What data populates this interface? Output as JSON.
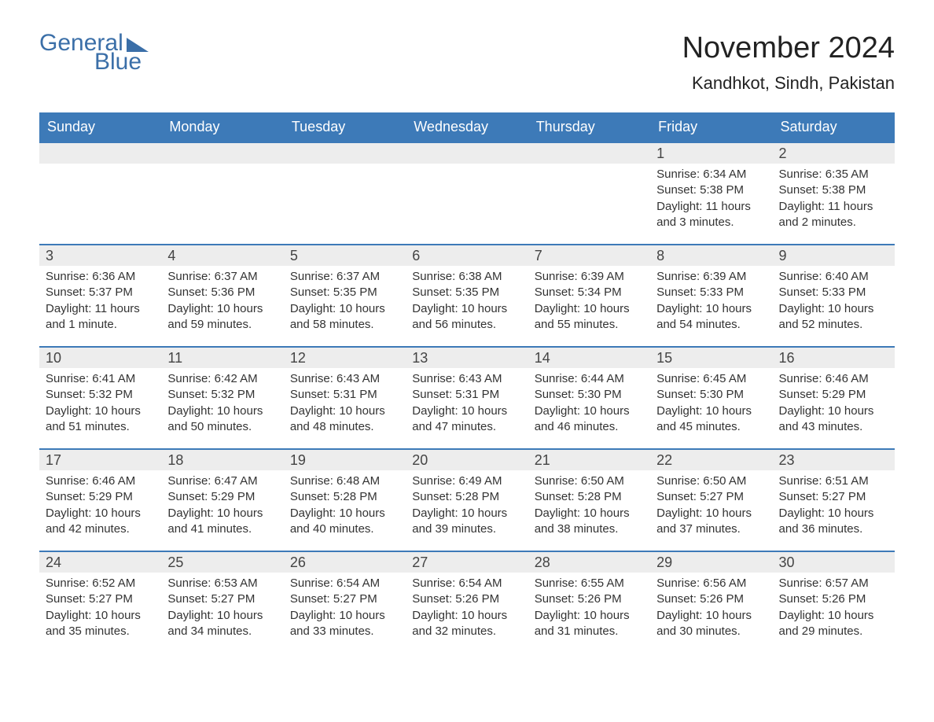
{
  "logo": {
    "word1": "General",
    "word2": "Blue"
  },
  "title": "November 2024",
  "location": "Kandhkot, Sindh, Pakistan",
  "colors": {
    "header_bg": "#3d7ab8",
    "header_text": "#ffffff",
    "daynum_bg": "#ededed",
    "week_border": "#3d7ab8",
    "body_text": "#333333",
    "logo_color": "#3b6fa8",
    "page_bg": "#ffffff"
  },
  "typography": {
    "title_fontsize": 38,
    "location_fontsize": 22,
    "weekday_fontsize": 18,
    "daynum_fontsize": 18,
    "body_fontsize": 15
  },
  "weekdays": [
    "Sunday",
    "Monday",
    "Tuesday",
    "Wednesday",
    "Thursday",
    "Friday",
    "Saturday"
  ],
  "labels": {
    "sunrise": "Sunrise:",
    "sunset": "Sunset:",
    "daylight": "Daylight:"
  },
  "weeks": [
    [
      {
        "empty": true
      },
      {
        "empty": true
      },
      {
        "empty": true
      },
      {
        "empty": true
      },
      {
        "empty": true
      },
      {
        "day": "1",
        "sunrise": "6:34 AM",
        "sunset": "5:38 PM",
        "daylight": "11 hours and 3 minutes."
      },
      {
        "day": "2",
        "sunrise": "6:35 AM",
        "sunset": "5:38 PM",
        "daylight": "11 hours and 2 minutes."
      }
    ],
    [
      {
        "day": "3",
        "sunrise": "6:36 AM",
        "sunset": "5:37 PM",
        "daylight": "11 hours and 1 minute."
      },
      {
        "day": "4",
        "sunrise": "6:37 AM",
        "sunset": "5:36 PM",
        "daylight": "10 hours and 59 minutes."
      },
      {
        "day": "5",
        "sunrise": "6:37 AM",
        "sunset": "5:35 PM",
        "daylight": "10 hours and 58 minutes."
      },
      {
        "day": "6",
        "sunrise": "6:38 AM",
        "sunset": "5:35 PM",
        "daylight": "10 hours and 56 minutes."
      },
      {
        "day": "7",
        "sunrise": "6:39 AM",
        "sunset": "5:34 PM",
        "daylight": "10 hours and 55 minutes."
      },
      {
        "day": "8",
        "sunrise": "6:39 AM",
        "sunset": "5:33 PM",
        "daylight": "10 hours and 54 minutes."
      },
      {
        "day": "9",
        "sunrise": "6:40 AM",
        "sunset": "5:33 PM",
        "daylight": "10 hours and 52 minutes."
      }
    ],
    [
      {
        "day": "10",
        "sunrise": "6:41 AM",
        "sunset": "5:32 PM",
        "daylight": "10 hours and 51 minutes."
      },
      {
        "day": "11",
        "sunrise": "6:42 AM",
        "sunset": "5:32 PM",
        "daylight": "10 hours and 50 minutes."
      },
      {
        "day": "12",
        "sunrise": "6:43 AM",
        "sunset": "5:31 PM",
        "daylight": "10 hours and 48 minutes."
      },
      {
        "day": "13",
        "sunrise": "6:43 AM",
        "sunset": "5:31 PM",
        "daylight": "10 hours and 47 minutes."
      },
      {
        "day": "14",
        "sunrise": "6:44 AM",
        "sunset": "5:30 PM",
        "daylight": "10 hours and 46 minutes."
      },
      {
        "day": "15",
        "sunrise": "6:45 AM",
        "sunset": "5:30 PM",
        "daylight": "10 hours and 45 minutes."
      },
      {
        "day": "16",
        "sunrise": "6:46 AM",
        "sunset": "5:29 PM",
        "daylight": "10 hours and 43 minutes."
      }
    ],
    [
      {
        "day": "17",
        "sunrise": "6:46 AM",
        "sunset": "5:29 PM",
        "daylight": "10 hours and 42 minutes."
      },
      {
        "day": "18",
        "sunrise": "6:47 AM",
        "sunset": "5:29 PM",
        "daylight": "10 hours and 41 minutes."
      },
      {
        "day": "19",
        "sunrise": "6:48 AM",
        "sunset": "5:28 PM",
        "daylight": "10 hours and 40 minutes."
      },
      {
        "day": "20",
        "sunrise": "6:49 AM",
        "sunset": "5:28 PM",
        "daylight": "10 hours and 39 minutes."
      },
      {
        "day": "21",
        "sunrise": "6:50 AM",
        "sunset": "5:28 PM",
        "daylight": "10 hours and 38 minutes."
      },
      {
        "day": "22",
        "sunrise": "6:50 AM",
        "sunset": "5:27 PM",
        "daylight": "10 hours and 37 minutes."
      },
      {
        "day": "23",
        "sunrise": "6:51 AM",
        "sunset": "5:27 PM",
        "daylight": "10 hours and 36 minutes."
      }
    ],
    [
      {
        "day": "24",
        "sunrise": "6:52 AM",
        "sunset": "5:27 PM",
        "daylight": "10 hours and 35 minutes."
      },
      {
        "day": "25",
        "sunrise": "6:53 AM",
        "sunset": "5:27 PM",
        "daylight": "10 hours and 34 minutes."
      },
      {
        "day": "26",
        "sunrise": "6:54 AM",
        "sunset": "5:27 PM",
        "daylight": "10 hours and 33 minutes."
      },
      {
        "day": "27",
        "sunrise": "6:54 AM",
        "sunset": "5:26 PM",
        "daylight": "10 hours and 32 minutes."
      },
      {
        "day": "28",
        "sunrise": "6:55 AM",
        "sunset": "5:26 PM",
        "daylight": "10 hours and 31 minutes."
      },
      {
        "day": "29",
        "sunrise": "6:56 AM",
        "sunset": "5:26 PM",
        "daylight": "10 hours and 30 minutes."
      },
      {
        "day": "30",
        "sunrise": "6:57 AM",
        "sunset": "5:26 PM",
        "daylight": "10 hours and 29 minutes."
      }
    ]
  ]
}
